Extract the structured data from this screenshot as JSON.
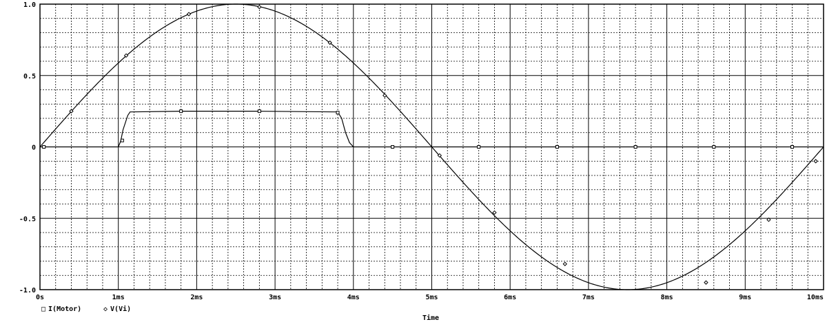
{
  "chart_data": {
    "type": "line",
    "xlabel": "Time",
    "ylabel": "",
    "xlim": [
      0,
      0.01
    ],
    "ylim": [
      -1.0,
      1.0
    ],
    "grid": true,
    "legend_position": "bottom-left",
    "x_ticks": [
      {
        "value": 0,
        "label": "0s"
      },
      {
        "value": 0.001,
        "label": "1ms"
      },
      {
        "value": 0.002,
        "label": "2ms"
      },
      {
        "value": 0.003,
        "label": "3ms"
      },
      {
        "value": 0.004,
        "label": "4ms"
      },
      {
        "value": 0.005,
        "label": "5ms"
      },
      {
        "value": 0.006,
        "label": "6ms"
      },
      {
        "value": 0.007,
        "label": "7ms"
      },
      {
        "value": 0.008,
        "label": "8ms"
      },
      {
        "value": 0.009,
        "label": "9ms"
      },
      {
        "value": 0.01,
        "label": "10ms"
      }
    ],
    "y_ticks": [
      {
        "value": 1.0,
        "label": "1.0"
      },
      {
        "value": 0.5,
        "label": "0.5"
      },
      {
        "value": 0,
        "label": "0"
      },
      {
        "value": -0.5,
        "label": "-0.5"
      },
      {
        "value": -1.0,
        "label": "-1.0"
      }
    ],
    "series": [
      {
        "name": "I(Motor)",
        "marker": "square",
        "x": [
          0,
          0.001,
          0.00103,
          0.00106,
          0.0001,
          0.00112,
          0.00115,
          0.0018,
          0.0028,
          0.0038,
          0.00385,
          0.0039,
          0.00395,
          0.004,
          0.0045,
          0.0056,
          0.0066,
          0.0076,
          0.0086,
          0.0096,
          0.01
        ],
        "values": [
          0,
          0,
          0.04,
          0.12,
          0,
          0.22,
          0.245,
          0.25,
          0.25,
          0.245,
          0.2,
          0.1,
          0.03,
          0,
          0,
          0,
          0,
          0,
          0,
          0,
          0
        ],
        "markers": [
          {
            "x": 5e-05,
            "y": 0
          },
          {
            "x": 0.00105,
            "y": 0.045
          },
          {
            "x": 0.0018,
            "y": 0.25
          },
          {
            "x": 0.0028,
            "y": 0.25
          },
          {
            "x": 0.0038,
            "y": 0.24
          },
          {
            "x": 0.0045,
            "y": 0
          },
          {
            "x": 0.0056,
            "y": 0
          },
          {
            "x": 0.0066,
            "y": 0
          },
          {
            "x": 0.0076,
            "y": 0
          },
          {
            "x": 0.0086,
            "y": 0
          },
          {
            "x": 0.0096,
            "y": 0
          }
        ]
      },
      {
        "name": "V(Vi)",
        "marker": "diamond",
        "function": "sin(2*pi*100*t)",
        "markers": [
          {
            "x": 0.0004,
            "y": 0.25
          },
          {
            "x": 0.0011,
            "y": 0.64
          },
          {
            "x": 0.0019,
            "y": 0.93
          },
          {
            "x": 0.0028,
            "y": 0.98
          },
          {
            "x": 0.0037,
            "y": 0.73
          },
          {
            "x": 0.0044,
            "y": 0.36
          },
          {
            "x": 0.0051,
            "y": -0.06
          },
          {
            "x": 0.0058,
            "y": -0.46
          },
          {
            "x": 0.0067,
            "y": -0.82
          },
          {
            "x": 0.0085,
            "y": -0.95
          },
          {
            "x": 0.0093,
            "y": -0.51
          },
          {
            "x": 0.0099,
            "y": -0.1
          }
        ]
      }
    ]
  },
  "legend": [
    {
      "symbol": "□",
      "label": "I(Motor)"
    },
    {
      "symbol": "◇",
      "label": "V(Vi)"
    }
  ]
}
